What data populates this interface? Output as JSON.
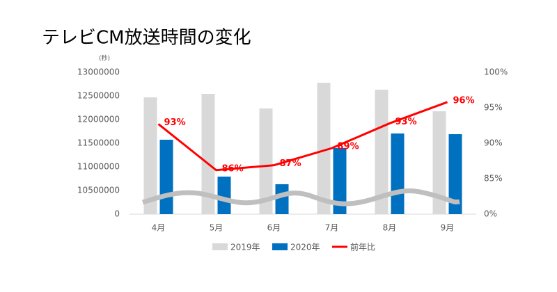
{
  "chart_data": {
    "type": "bar_line",
    "title": "テレビCM放送時間の変化",
    "y_unit": "(秒)",
    "categories": [
      "4月",
      "5月",
      "6月",
      "7月",
      "8月",
      "9月"
    ],
    "series": [
      {
        "name": "2019年",
        "color": "#d9d9d9",
        "type": "bar",
        "values": [
          12470000,
          12544000,
          12235000,
          12779000,
          12632000,
          12176000
        ]
      },
      {
        "name": "2020年",
        "color": "#0070c0",
        "type": "bar",
        "values": [
          11574000,
          10794000,
          10632000,
          11397000,
          11706000,
          11691000
        ]
      },
      {
        "name": "前年比",
        "color": "#ff0000",
        "type": "line",
        "axis": "y2",
        "values": [
          92.7,
          86.2,
          86.9,
          89.3,
          92.8,
          95.8
        ],
        "value_labels": [
          "93%",
          "86%",
          "87%",
          "89%",
          "93%",
          "96%"
        ]
      }
    ],
    "ylim": [
      0,
      13000000
    ],
    "y_axis_break": [
      0,
      10000000
    ],
    "yticks": [
      0,
      10500000,
      11000000,
      11500000,
      12000000,
      12500000,
      13000000
    ],
    "y2lim": [
      0,
      100
    ],
    "y2_axis_break": [
      0,
      80
    ],
    "y2ticks": [
      {
        "value": 0,
        "label": "0%"
      },
      {
        "value": 85,
        "label": "85%"
      },
      {
        "value": 90,
        "label": "90%"
      },
      {
        "value": 95,
        "label": "95%"
      },
      {
        "value": 100,
        "label": "100%"
      }
    ],
    "legend": "bottom"
  }
}
